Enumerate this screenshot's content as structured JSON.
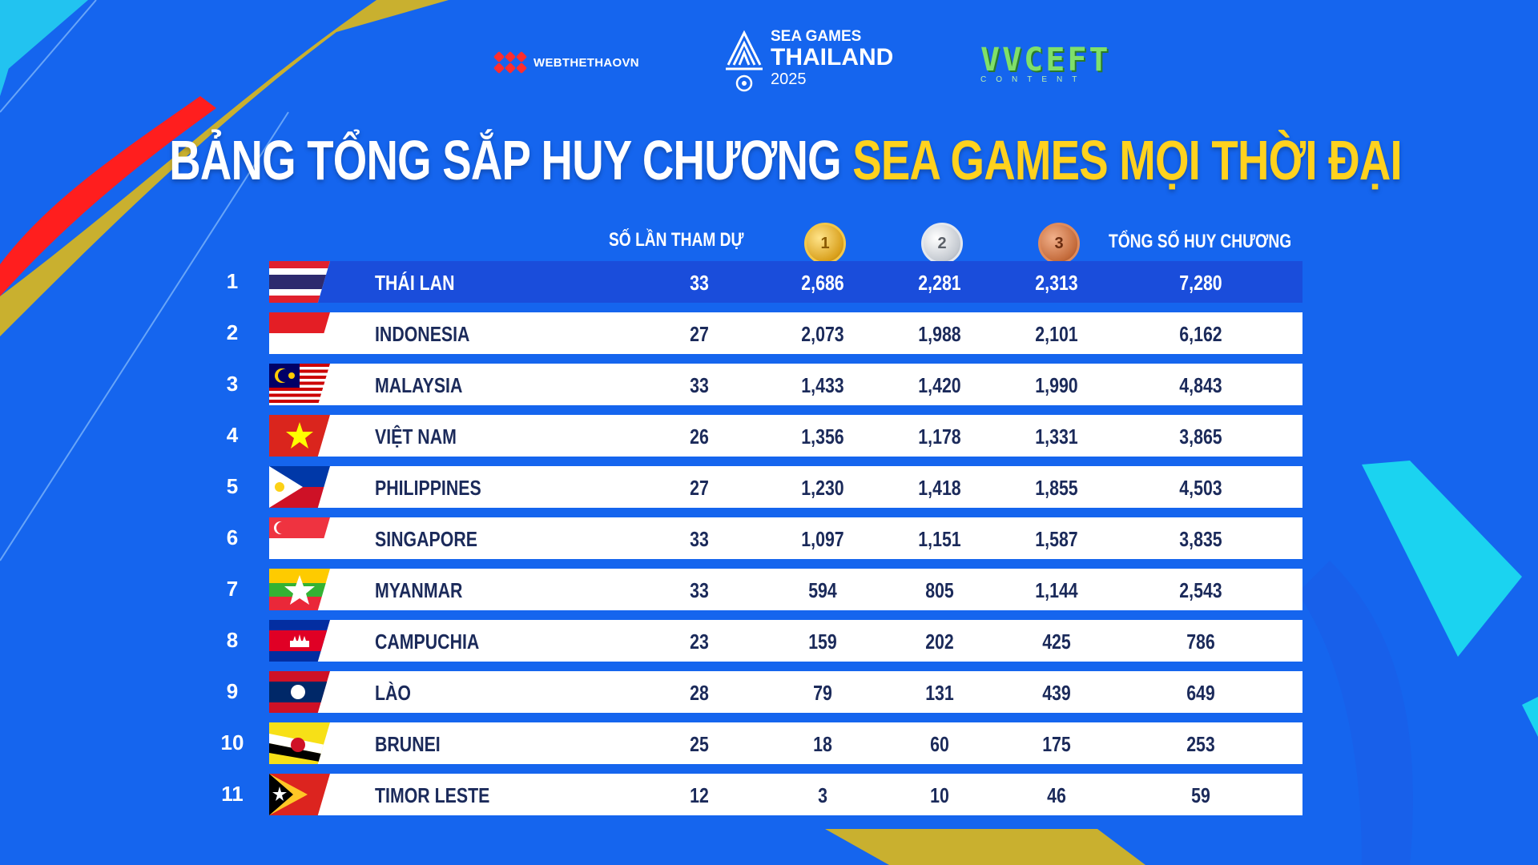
{
  "logos": {
    "left": "WEBTHETHAOVN",
    "center_line1": "SEA GAMES",
    "center_line2": "THAILAND",
    "center_line3": "2025",
    "right": "VVCEFT",
    "right_sub": "CONTENT"
  },
  "title": {
    "white": "BẢNG TỔNG SẮP HUY CHƯƠNG",
    "yellow": "SEA GAMES MỌI THỜI ĐẠI"
  },
  "headers": {
    "participations": "SỐ LẦN THAM DỰ",
    "gold": "1",
    "silver": "2",
    "bronze": "3",
    "total": "TỔNG SỐ HUY CHƯƠNG"
  },
  "rows": [
    {
      "rank": "1",
      "country": "THÁI LAN",
      "flag": "thailand",
      "participations": "33",
      "gold": "2,686",
      "silver": "2,281",
      "bronze": "2,313",
      "total": "7,280"
    },
    {
      "rank": "2",
      "country": "INDONESIA",
      "flag": "indonesia",
      "participations": "27",
      "gold": "2,073",
      "silver": "1,988",
      "bronze": "2,101",
      "total": "6,162"
    },
    {
      "rank": "3",
      "country": "MALAYSIA",
      "flag": "malaysia",
      "participations": "33",
      "gold": "1,433",
      "silver": "1,420",
      "bronze": "1,990",
      "total": "4,843"
    },
    {
      "rank": "4",
      "country": "VIỆT NAM",
      "flag": "vietnam",
      "participations": "26",
      "gold": "1,356",
      "silver": "1,178",
      "bronze": "1,331",
      "total": "3,865"
    },
    {
      "rank": "5",
      "country": "PHILIPPINES",
      "flag": "philippines",
      "participations": "27",
      "gold": "1,230",
      "silver": "1,418",
      "bronze": "1,855",
      "total": "4,503"
    },
    {
      "rank": "6",
      "country": "SINGAPORE",
      "flag": "singapore",
      "participations": "33",
      "gold": "1,097",
      "silver": "1,151",
      "bronze": "1,587",
      "total": "3,835"
    },
    {
      "rank": "7",
      "country": "MYANMAR",
      "flag": "myanmar",
      "participations": "33",
      "gold": "594",
      "silver": "805",
      "bronze": "1,144",
      "total": "2,543"
    },
    {
      "rank": "8",
      "country": "CAMPUCHIA",
      "flag": "cambodia",
      "participations": "23",
      "gold": "159",
      "silver": "202",
      "bronze": "425",
      "total": "786"
    },
    {
      "rank": "9",
      "country": "LÀO",
      "flag": "laos",
      "participations": "28",
      "gold": "79",
      "silver": "131",
      "bronze": "439",
      "total": "649"
    },
    {
      "rank": "10",
      "country": "BRUNEI",
      "flag": "brunei",
      "participations": "25",
      "gold": "18",
      "silver": "60",
      "bronze": "175",
      "total": "253"
    },
    {
      "rank": "11",
      "country": "TIMOR LESTE",
      "flag": "timor-leste",
      "participations": "12",
      "gold": "3",
      "silver": "10",
      "bronze": "46",
      "total": "59"
    }
  ]
}
